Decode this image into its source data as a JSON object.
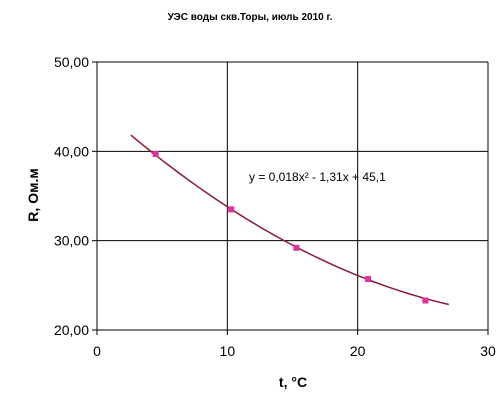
{
  "chart_data": {
    "type": "scatter",
    "title": "УЭС воды скв.Торы, июль 2010 г.",
    "xlabel": "t, °C",
    "ylabel": "R, Ом.м",
    "xlim": [
      0,
      30
    ],
    "ylim": [
      20,
      50
    ],
    "x_ticks": [
      "0",
      "10",
      "20",
      "30"
    ],
    "y_ticks": [
      "20,00",
      "30,00",
      "40,00",
      "50,00"
    ],
    "grid": "vertical lines at x=10 and x=20, horizontal lines at y=30 and y=40",
    "series": [
      {
        "x": [
          4.5,
          10.3,
          15.3,
          20.8,
          25.2
        ],
        "y": [
          39.7,
          33.5,
          29.2,
          25.7,
          23.3
        ],
        "color": "#e0309a"
      }
    ],
    "trendline": {
      "type": "polynomial",
      "coefficients": {
        "a": 0.018,
        "b": -1.31,
        "c": 45.1
      },
      "x_range": [
        2.6,
        27.0
      ],
      "color": "#8b1a3a",
      "equation_label": "y = 0,018x² - 1,31x + 45,1"
    },
    "annotations": [
      "y = 0,018x² - 1,31x + 45,1"
    ]
  }
}
